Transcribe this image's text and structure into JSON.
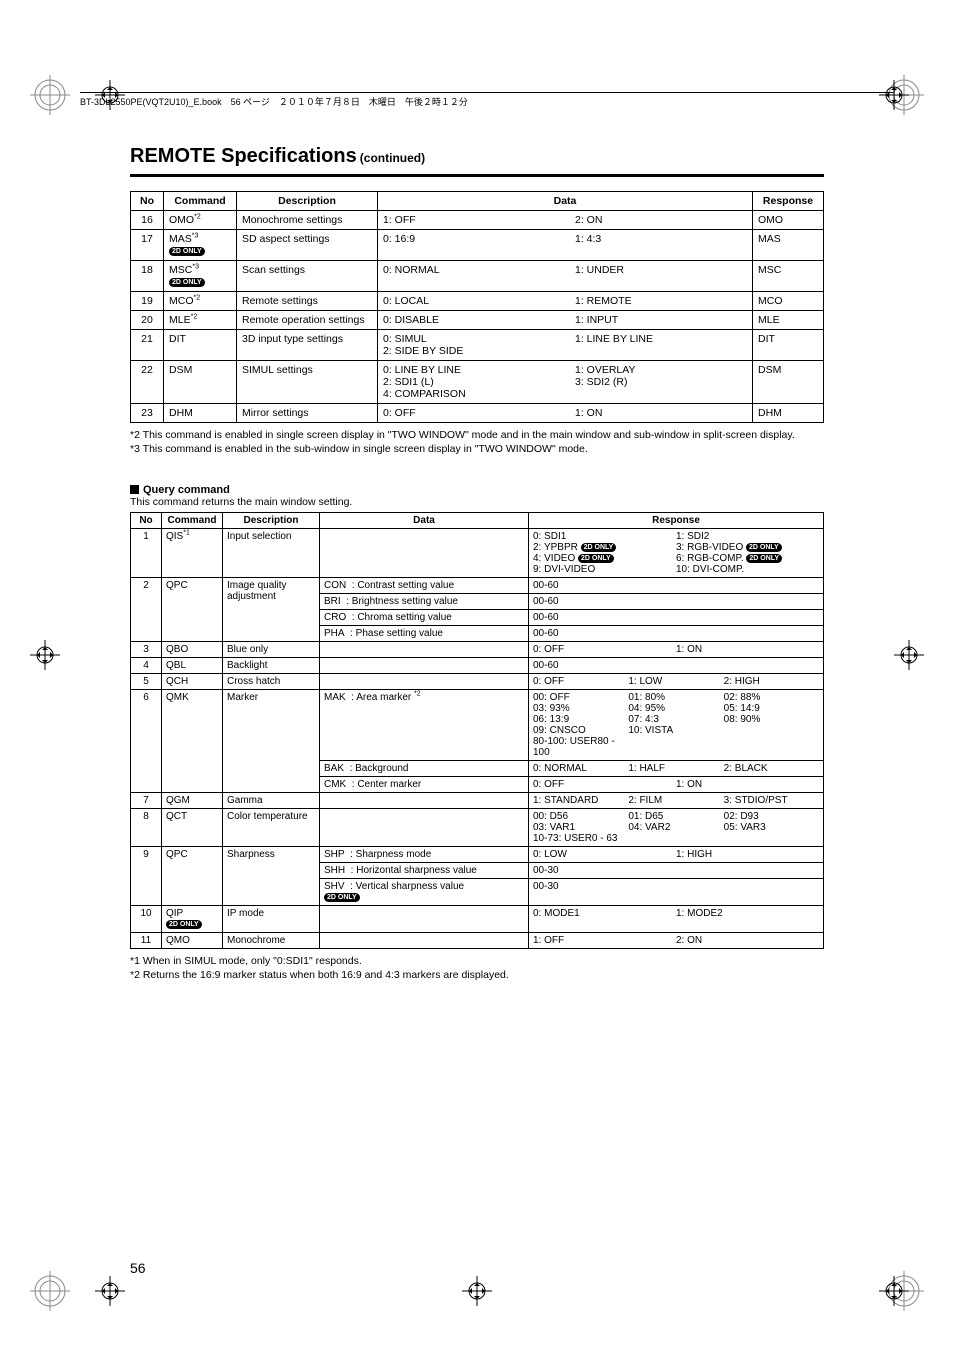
{
  "header": {
    "runningHead": "BT-3DL2550PE(VQT2U10)_E.book　56 ページ　２０１０年７月８日　木曜日　午後２時１２分"
  },
  "title": {
    "main": "REMOTE Specifications",
    "cont": "(continued)"
  },
  "table1": {
    "headers": [
      "No",
      "Command",
      "Description",
      "Data",
      "Response"
    ],
    "rows": [
      {
        "no": "16",
        "cmd": "OMO",
        "sup": "*2",
        "badge": "",
        "desc": "Monochrome settings",
        "data": [
          "1: OFF",
          "2: ON"
        ],
        "resp": "OMO"
      },
      {
        "no": "17",
        "cmd": "MAS",
        "sup": "*3",
        "badge": "2D ONLY",
        "desc": "SD aspect settings",
        "data": [
          "0: 16:9",
          "1: 4:3"
        ],
        "resp": "MAS"
      },
      {
        "no": "18",
        "cmd": "MSC",
        "sup": "*3",
        "badge": "2D ONLY",
        "desc": "Scan settings",
        "data": [
          "0: NORMAL",
          "1: UNDER"
        ],
        "resp": "MSC"
      },
      {
        "no": "19",
        "cmd": "MCO",
        "sup": "*2",
        "badge": "",
        "desc": "Remote settings",
        "data": [
          "0: LOCAL",
          "1: REMOTE"
        ],
        "resp": "MCO"
      },
      {
        "no": "20",
        "cmd": "MLE",
        "sup": "*2",
        "badge": "",
        "desc": "Remote operation settings",
        "data": [
          "0: DISABLE",
          "1: INPUT"
        ],
        "resp": "MLE"
      },
      {
        "no": "21",
        "cmd": "DIT",
        "sup": "",
        "badge": "",
        "desc": "3D input type settings",
        "data": [
          "0: SIMUL\n2: SIDE BY SIDE",
          "1: LINE BY LINE"
        ],
        "resp": "DIT"
      },
      {
        "no": "22",
        "cmd": "DSM",
        "sup": "",
        "badge": "",
        "desc": "SIMUL settings",
        "data": [
          "0: LINE BY LINE\n2: SDI1 (L)\n4: COMPARISON",
          "1: OVERLAY\n3: SDI2 (R)"
        ],
        "resp": "DSM"
      },
      {
        "no": "23",
        "cmd": "DHM",
        "sup": "",
        "badge": "",
        "desc": "Mirror settings",
        "data": [
          "0: OFF",
          "1: ON"
        ],
        "resp": "DHM"
      }
    ]
  },
  "footnotes1": [
    "*2  This command is enabled in single screen display in \"TWO WINDOW\" mode and in the main window and sub-window in split-screen display.",
    "*3  This command is enabled in the sub-window in single screen display in \"TWO WINDOW\" mode."
  ],
  "querySection": {
    "title": "Query command",
    "desc": "This command returns the main window setting."
  },
  "tableQ": {
    "headers": [
      "No",
      "Command",
      "Description",
      "Data",
      "Response"
    ]
  },
  "q_row1": {
    "no": "1",
    "cmd": "QIS",
    "sup": "*1",
    "desc": "Input selection",
    "resp": [
      [
        "0: SDI1",
        "1: SDI2"
      ],
      [
        "2: YPBPR",
        "3: RGB-VIDEO"
      ],
      [
        "4: VIDEO",
        "6: RGB-COMP."
      ],
      [
        "9: DVI-VIDEO",
        "10: DVI-COMP."
      ]
    ],
    "badges": [
      [
        false,
        false
      ],
      [
        true,
        true
      ],
      [
        true,
        true
      ],
      [
        false,
        false
      ]
    ]
  },
  "q_row2": {
    "no": "2",
    "cmd": "QPC",
    "desc": "Image quality adjustment",
    "sub": [
      {
        "d": "CON",
        "dd": ": Contrast setting value",
        "r": "00-60"
      },
      {
        "d": "BRI",
        "dd": ": Brightness setting value",
        "r": "00-60"
      },
      {
        "d": "CRO",
        "dd": ": Chroma setting value",
        "r": "00-60"
      },
      {
        "d": "PHA",
        "dd": ": Phase setting value",
        "r": "00-60"
      }
    ]
  },
  "q_row3": {
    "no": "3",
    "cmd": "QBO",
    "desc": "Blue only",
    "resp": [
      "0: OFF",
      "1: ON"
    ]
  },
  "q_row4": {
    "no": "4",
    "cmd": "QBL",
    "desc": "Backlight",
    "resp": [
      "00-60"
    ]
  },
  "q_row5": {
    "no": "5",
    "cmd": "QCH",
    "desc": "Cross hatch",
    "resp": [
      "0: OFF",
      "1: LOW",
      "2: HIGH"
    ]
  },
  "q_row6": {
    "no": "6",
    "cmd": "QMK",
    "desc": "Marker",
    "sub": [
      {
        "d": "MAK",
        "dd": ": Area marker",
        "sup": "*2",
        "r": [
          [
            "00: OFF",
            "01: 80%",
            "02: 88%"
          ],
          [
            "03: 93%",
            "04: 95%",
            "05: 14:9"
          ],
          [
            "06: 13:9",
            "07: 4:3",
            "08: 90%"
          ],
          [
            "09: CNSCO",
            "10: VISTA",
            ""
          ],
          [
            "80-100: USER80 - 100",
            "",
            ""
          ]
        ]
      },
      {
        "d": "BAK",
        "dd": ": Background",
        "r3": [
          "0: NORMAL",
          "1: HALF",
          "2: BLACK"
        ]
      },
      {
        "d": "CMK",
        "dd": ": Center marker",
        "r2": [
          "0: OFF",
          "1: ON"
        ]
      }
    ]
  },
  "q_row7": {
    "no": "7",
    "cmd": "QGM",
    "desc": "Gamma",
    "resp": [
      "1: STANDARD",
      "2: FILM",
      "3: STDIO/PST"
    ]
  },
  "q_row8": {
    "no": "8",
    "cmd": "QCT",
    "desc": "Color temperature",
    "resp": [
      [
        "00: D56",
        "01: D65",
        "02: D93"
      ],
      [
        "03: VAR1",
        "04: VAR2",
        "05: VAR3"
      ],
      [
        "10-73: USER0 - 63",
        "",
        ""
      ]
    ]
  },
  "q_row9": {
    "no": "9",
    "cmd": "QPC",
    "desc": "Sharpness",
    "sub": [
      {
        "d": "SHP",
        "dd": ": Sharpness mode",
        "r2": [
          "0: LOW",
          "1: HIGH"
        ]
      },
      {
        "d": "SHH",
        "dd": ": Horizontal sharpness value",
        "r": "00-30"
      },
      {
        "d": "SHV",
        "dd": ": Vertical sharpness value",
        "badge": "2D ONLY",
        "r": "00-30"
      }
    ]
  },
  "q_row10": {
    "no": "10",
    "cmd": "QIP",
    "badge": "2D ONLY",
    "desc": "IP mode",
    "resp": [
      "0: MODE1",
      "1: MODE2"
    ]
  },
  "q_row11": {
    "no": "11",
    "cmd": "QMO",
    "desc": "Monochrome",
    "resp": [
      "1: OFF",
      "2: ON"
    ]
  },
  "footnotesQ": [
    "*1  When in SIMUL mode, only \"0:SDI1\" responds.",
    "*2  Returns the 16:9 marker status when both 16:9 and 4:3 markers are displayed."
  ],
  "pageNum": "56"
}
